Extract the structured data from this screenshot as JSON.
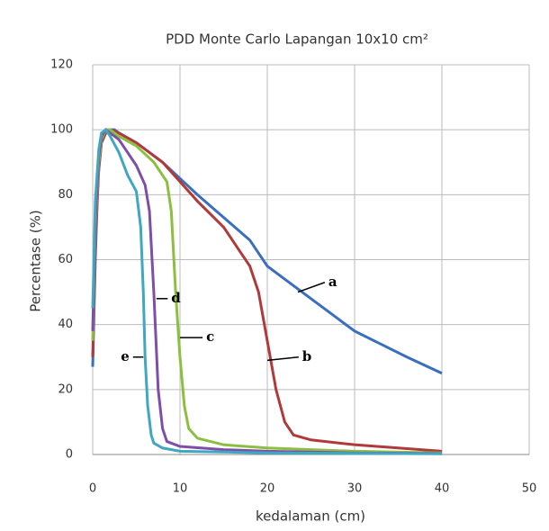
{
  "chart_data": {
    "type": "line",
    "title": "PDD Monte  Carlo  Lapangan  10x10 cm²",
    "x_label": "kedalaman (cm)",
    "y_label": "Percentase (%)",
    "xlim": [
      0,
      50
    ],
    "xticks": [
      0,
      10,
      20,
      30,
      40,
      50
    ],
    "ylim": [
      0,
      120
    ],
    "yticks": [
      0,
      20,
      40,
      60,
      80,
      100,
      120
    ],
    "grid": true,
    "series": [
      {
        "name": "a",
        "color": "#3a6ebf",
        "x": [
          0,
          0.3,
          0.6,
          1,
          1.5,
          2,
          2.5,
          3,
          5,
          8,
          10,
          12,
          15,
          18,
          20,
          22,
          25,
          28,
          30,
          33,
          36,
          40
        ],
        "values": [
          27,
          60,
          85,
          96,
          99,
          100,
          100,
          99,
          96,
          90,
          85,
          80,
          73,
          66,
          58,
          54,
          48,
          42,
          38,
          34,
          30,
          25
        ]
      },
      {
        "name": "b",
        "color": "#b03a3a",
        "x": [
          0,
          0.3,
          0.7,
          1,
          1.5,
          2,
          3,
          5,
          8,
          10,
          12,
          15,
          17,
          18,
          19,
          20,
          21,
          22,
          23,
          25,
          30,
          35,
          40
        ],
        "values": [
          30,
          65,
          88,
          96,
          99,
          100,
          99,
          96,
          90,
          84,
          78,
          70,
          62,
          58,
          50,
          35,
          20,
          10,
          6,
          4.5,
          3,
          2,
          1
        ]
      },
      {
        "name": "c",
        "color": "#8cbf3f",
        "x": [
          0,
          0.3,
          0.7,
          1,
          1.5,
          2,
          3,
          5,
          7,
          8.5,
          9,
          9.5,
          10,
          10.5,
          11,
          12,
          15,
          20,
          30,
          40
        ],
        "values": [
          35,
          70,
          90,
          97,
          100,
          100,
          98,
          95,
          90,
          84,
          75,
          50,
          30,
          15,
          8,
          5,
          3,
          2,
          1,
          0.5
        ]
      },
      {
        "name": "d",
        "color": "#7e4fa8",
        "x": [
          0,
          0.3,
          0.7,
          1,
          1.5,
          2,
          3,
          4,
          5,
          6,
          6.5,
          7,
          7.5,
          8,
          8.5,
          10,
          15,
          20,
          30,
          40
        ],
        "values": [
          38,
          72,
          92,
          98,
          100,
          99,
          97,
          93,
          89,
          83,
          75,
          50,
          20,
          8,
          4,
          2.5,
          1.5,
          1,
          0.5,
          0.3
        ]
      },
      {
        "name": "e",
        "color": "#3fa8c0",
        "x": [
          0,
          0.3,
          0.7,
          1,
          1.5,
          2,
          3,
          4,
          5,
          5.5,
          5.8,
          6,
          6.3,
          6.7,
          7,
          8,
          10,
          20,
          40
        ],
        "values": [
          45,
          78,
          94,
          99,
          100,
          98,
          93,
          86,
          81,
          70,
          50,
          30,
          15,
          6,
          3.5,
          2,
          1,
          0.5,
          0.2
        ]
      }
    ]
  }
}
